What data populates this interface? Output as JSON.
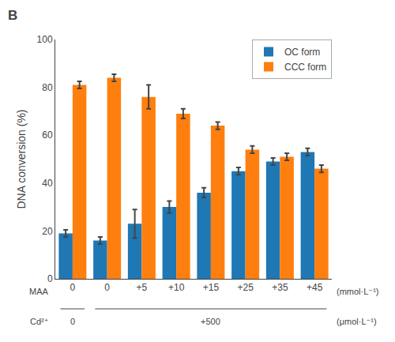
{
  "chart_data": {
    "type": "bar",
    "title": "B",
    "categories": [
      "0",
      "0",
      "+5",
      "+10",
      "+15",
      "+25",
      "+35",
      "+45"
    ],
    "series": [
      {
        "name": "OC form",
        "values": [
          19,
          16,
          23,
          30,
          36,
          45,
          49,
          53
        ],
        "errors": [
          1.5,
          1.5,
          6,
          2.5,
          2,
          1.5,
          1.5,
          1.5
        ]
      },
      {
        "name": "CCC form",
        "values": [
          81,
          84,
          76,
          69,
          64,
          54,
          51,
          46
        ],
        "errors": [
          1.5,
          1.5,
          5,
          2,
          1.5,
          1.5,
          1.5,
          1.5
        ]
      }
    ],
    "ylabel": "DNA conversion (%)",
    "ylim": [
      0,
      100
    ],
    "yticks": [
      0,
      20,
      40,
      60,
      80,
      100
    ],
    "grid": false,
    "legend": "upper right",
    "annotations": [
      "MAA",
      "(mmol·L⁻¹)",
      "Cd²⁺",
      "(μmol·L⁻¹)",
      "0",
      "+500"
    ]
  }
}
